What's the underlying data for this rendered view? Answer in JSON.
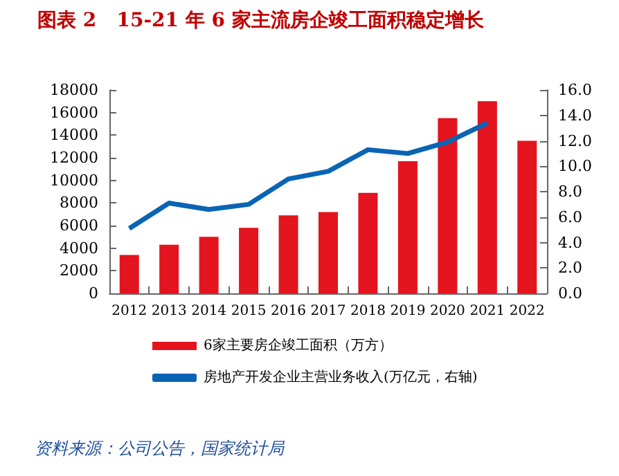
{
  "chart_data": {
    "type": "bar",
    "title": "图表 2   15-21 年 6 家主流房企竣工面积稳定增长",
    "categories": [
      "2012",
      "2013",
      "2014",
      "2015",
      "2016",
      "2017",
      "2018",
      "2019",
      "2020",
      "2021",
      "2022"
    ],
    "series": [
      {
        "name": "6家主要房企竣工面积（万方）",
        "color": "#e3141e",
        "values": [
          3400,
          4300,
          5000,
          5800,
          6900,
          7200,
          8900,
          11700,
          15500,
          17000,
          13500
        ]
      },
      {
        "name": "房地产开发企业主营业务收入(万亿元，右轴)",
        "type": "line",
        "axis": "y2",
        "color": "#0a64b4",
        "marker": "none",
        "values": [
          5.1,
          7.1,
          6.6,
          7.0,
          9.0,
          9.6,
          11.3,
          11.0,
          11.9,
          13.4,
          null
        ]
      }
    ],
    "ylim": [
      0,
      18000
    ],
    "yticks": [
      0,
      2000,
      4000,
      6000,
      8000,
      10000,
      12000,
      14000,
      16000,
      18000
    ],
    "y2lim": [
      0,
      16
    ],
    "y2ticks": [
      {
        "value": 0,
        "label": "0.0"
      },
      {
        "value": 2,
        "label": "2.0"
      },
      {
        "value": 4,
        "label": "4.0"
      },
      {
        "value": 6,
        "label": "6.0"
      },
      {
        "value": 8,
        "label": "8.0"
      },
      {
        "value": 10,
        "label": "10.0"
      },
      {
        "value": 12,
        "label": "12.0"
      },
      {
        "value": 14,
        "label": "14.0"
      },
      {
        "value": 16,
        "label": "16.0"
      }
    ],
    "grid": false,
    "legend": "bottom",
    "annotations": [
      "资料来源：公司公告，国家统计局"
    ]
  }
}
